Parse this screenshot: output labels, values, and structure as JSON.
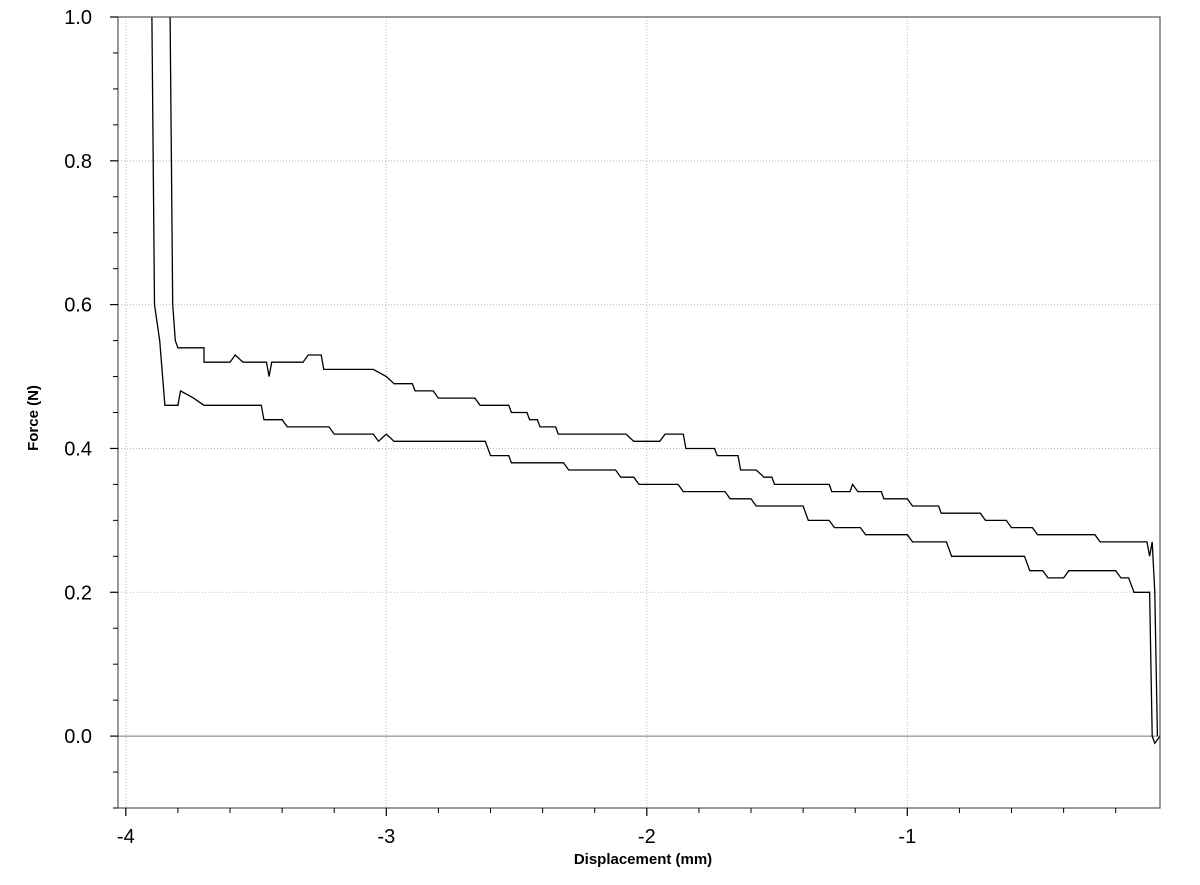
{
  "chart_data": {
    "type": "line",
    "xlabel": "Displacement (mm)",
    "ylabel": "Force (N)",
    "xlim": [
      -4.03,
      -0.03
    ],
    "ylim": [
      -0.1,
      1.0
    ],
    "x_ticks": [
      -4,
      -3,
      -2,
      -1
    ],
    "x_tick_labels": [
      "-4",
      "-3",
      "-2",
      "-1"
    ],
    "y_ticks": [
      0.0,
      0.2,
      0.4,
      0.6,
      0.8,
      1.0
    ],
    "y_tick_labels": [
      "0.0",
      "0.2",
      "0.4",
      "0.6",
      "0.8",
      "1.0"
    ],
    "grid": true,
    "line_color": "#000000",
    "grid_color": "#bbbbbb",
    "series": [
      {
        "points": [
          [
            -3.83,
            1.0
          ],
          [
            -3.82,
            0.6
          ],
          [
            -3.81,
            0.55
          ],
          [
            -3.8,
            0.54
          ],
          [
            -3.7,
            0.54
          ],
          [
            -3.7,
            0.52
          ],
          [
            -3.6,
            0.52
          ],
          [
            -3.58,
            0.53
          ],
          [
            -3.55,
            0.52
          ],
          [
            -3.46,
            0.52
          ],
          [
            -3.45,
            0.5
          ],
          [
            -3.44,
            0.52
          ],
          [
            -3.32,
            0.52
          ],
          [
            -3.3,
            0.53
          ],
          [
            -3.25,
            0.53
          ],
          [
            -3.24,
            0.51
          ],
          [
            -3.05,
            0.51
          ],
          [
            -3.0,
            0.5
          ],
          [
            -2.97,
            0.49
          ],
          [
            -2.9,
            0.49
          ],
          [
            -2.89,
            0.48
          ],
          [
            -2.82,
            0.48
          ],
          [
            -2.8,
            0.47
          ],
          [
            -2.66,
            0.47
          ],
          [
            -2.64,
            0.46
          ],
          [
            -2.53,
            0.46
          ],
          [
            -2.52,
            0.45
          ],
          [
            -2.46,
            0.45
          ],
          [
            -2.45,
            0.44
          ],
          [
            -2.42,
            0.44
          ],
          [
            -2.41,
            0.43
          ],
          [
            -2.35,
            0.43
          ],
          [
            -2.34,
            0.42
          ],
          [
            -2.08,
            0.42
          ],
          [
            -2.05,
            0.41
          ],
          [
            -1.95,
            0.41
          ],
          [
            -1.93,
            0.42
          ],
          [
            -1.86,
            0.42
          ],
          [
            -1.85,
            0.4
          ],
          [
            -1.74,
            0.4
          ],
          [
            -1.73,
            0.39
          ],
          [
            -1.65,
            0.39
          ],
          [
            -1.64,
            0.37
          ],
          [
            -1.58,
            0.37
          ],
          [
            -1.55,
            0.36
          ],
          [
            -1.52,
            0.36
          ],
          [
            -1.51,
            0.35
          ],
          [
            -1.3,
            0.35
          ],
          [
            -1.29,
            0.34
          ],
          [
            -1.22,
            0.34
          ],
          [
            -1.21,
            0.35
          ],
          [
            -1.19,
            0.34
          ],
          [
            -1.1,
            0.34
          ],
          [
            -1.09,
            0.33
          ],
          [
            -1.0,
            0.33
          ],
          [
            -0.98,
            0.32
          ],
          [
            -0.88,
            0.32
          ],
          [
            -0.87,
            0.31
          ],
          [
            -0.72,
            0.31
          ],
          [
            -0.7,
            0.3
          ],
          [
            -0.62,
            0.3
          ],
          [
            -0.6,
            0.29
          ],
          [
            -0.52,
            0.29
          ],
          [
            -0.5,
            0.28
          ],
          [
            -0.28,
            0.28
          ],
          [
            -0.26,
            0.27
          ],
          [
            -0.08,
            0.27
          ],
          [
            -0.07,
            0.25
          ],
          [
            -0.06,
            0.27
          ],
          [
            -0.05,
            0.2
          ],
          [
            -0.04,
            0.0
          ]
        ]
      },
      {
        "points": [
          [
            -3.9,
            1.0
          ],
          [
            -3.89,
            0.6
          ],
          [
            -3.87,
            0.55
          ],
          [
            -3.85,
            0.46
          ],
          [
            -3.8,
            0.46
          ],
          [
            -3.79,
            0.48
          ],
          [
            -3.74,
            0.47
          ],
          [
            -3.7,
            0.46
          ],
          [
            -3.48,
            0.46
          ],
          [
            -3.47,
            0.44
          ],
          [
            -3.4,
            0.44
          ],
          [
            -3.38,
            0.43
          ],
          [
            -3.22,
            0.43
          ],
          [
            -3.2,
            0.42
          ],
          [
            -3.05,
            0.42
          ],
          [
            -3.03,
            0.41
          ],
          [
            -3.0,
            0.42
          ],
          [
            -2.97,
            0.41
          ],
          [
            -2.62,
            0.41
          ],
          [
            -2.6,
            0.39
          ],
          [
            -2.53,
            0.39
          ],
          [
            -2.52,
            0.38
          ],
          [
            -2.32,
            0.38
          ],
          [
            -2.3,
            0.37
          ],
          [
            -2.12,
            0.37
          ],
          [
            -2.1,
            0.36
          ],
          [
            -2.05,
            0.36
          ],
          [
            -2.03,
            0.35
          ],
          [
            -1.88,
            0.35
          ],
          [
            -1.86,
            0.34
          ],
          [
            -1.7,
            0.34
          ],
          [
            -1.68,
            0.33
          ],
          [
            -1.6,
            0.33
          ],
          [
            -1.58,
            0.32
          ],
          [
            -1.4,
            0.32
          ],
          [
            -1.38,
            0.3
          ],
          [
            -1.3,
            0.3
          ],
          [
            -1.28,
            0.29
          ],
          [
            -1.18,
            0.29
          ],
          [
            -1.16,
            0.28
          ],
          [
            -1.0,
            0.28
          ],
          [
            -0.98,
            0.27
          ],
          [
            -0.85,
            0.27
          ],
          [
            -0.83,
            0.25
          ],
          [
            -0.55,
            0.25
          ],
          [
            -0.53,
            0.23
          ],
          [
            -0.48,
            0.23
          ],
          [
            -0.46,
            0.22
          ],
          [
            -0.4,
            0.22
          ],
          [
            -0.38,
            0.23
          ],
          [
            -0.2,
            0.23
          ],
          [
            -0.18,
            0.22
          ],
          [
            -0.15,
            0.22
          ],
          [
            -0.13,
            0.2
          ],
          [
            -0.07,
            0.2
          ],
          [
            -0.06,
            0.0
          ],
          [
            -0.05,
            -0.01
          ],
          [
            -0.03,
            0.0
          ]
        ]
      }
    ]
  }
}
